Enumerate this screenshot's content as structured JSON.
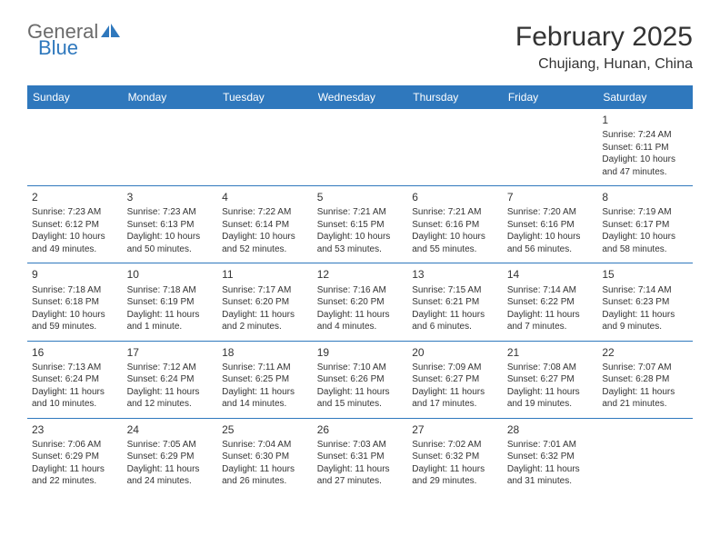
{
  "logo": {
    "word1": "General",
    "word2": "Blue"
  },
  "title": "February 2025",
  "location": "Chujiang, Hunan, China",
  "colors": {
    "header_bg": "#2f78bd",
    "header_text": "#ffffff",
    "body_bg": "#ffffff",
    "text": "#333333",
    "rule": "#2f78bd"
  },
  "weekdays": [
    "Sunday",
    "Monday",
    "Tuesday",
    "Wednesday",
    "Thursday",
    "Friday",
    "Saturday"
  ],
  "weeks": [
    [
      null,
      null,
      null,
      null,
      null,
      null,
      {
        "n": "1",
        "sr": "Sunrise: 7:24 AM",
        "ss": "Sunset: 6:11 PM",
        "dl1": "Daylight: 10 hours",
        "dl2": "and 47 minutes."
      }
    ],
    [
      {
        "n": "2",
        "sr": "Sunrise: 7:23 AM",
        "ss": "Sunset: 6:12 PM",
        "dl1": "Daylight: 10 hours",
        "dl2": "and 49 minutes."
      },
      {
        "n": "3",
        "sr": "Sunrise: 7:23 AM",
        "ss": "Sunset: 6:13 PM",
        "dl1": "Daylight: 10 hours",
        "dl2": "and 50 minutes."
      },
      {
        "n": "4",
        "sr": "Sunrise: 7:22 AM",
        "ss": "Sunset: 6:14 PM",
        "dl1": "Daylight: 10 hours",
        "dl2": "and 52 minutes."
      },
      {
        "n": "5",
        "sr": "Sunrise: 7:21 AM",
        "ss": "Sunset: 6:15 PM",
        "dl1": "Daylight: 10 hours",
        "dl2": "and 53 minutes."
      },
      {
        "n": "6",
        "sr": "Sunrise: 7:21 AM",
        "ss": "Sunset: 6:16 PM",
        "dl1": "Daylight: 10 hours",
        "dl2": "and 55 minutes."
      },
      {
        "n": "7",
        "sr": "Sunrise: 7:20 AM",
        "ss": "Sunset: 6:16 PM",
        "dl1": "Daylight: 10 hours",
        "dl2": "and 56 minutes."
      },
      {
        "n": "8",
        "sr": "Sunrise: 7:19 AM",
        "ss": "Sunset: 6:17 PM",
        "dl1": "Daylight: 10 hours",
        "dl2": "and 58 minutes."
      }
    ],
    [
      {
        "n": "9",
        "sr": "Sunrise: 7:18 AM",
        "ss": "Sunset: 6:18 PM",
        "dl1": "Daylight: 10 hours",
        "dl2": "and 59 minutes."
      },
      {
        "n": "10",
        "sr": "Sunrise: 7:18 AM",
        "ss": "Sunset: 6:19 PM",
        "dl1": "Daylight: 11 hours",
        "dl2": "and 1 minute."
      },
      {
        "n": "11",
        "sr": "Sunrise: 7:17 AM",
        "ss": "Sunset: 6:20 PM",
        "dl1": "Daylight: 11 hours",
        "dl2": "and 2 minutes."
      },
      {
        "n": "12",
        "sr": "Sunrise: 7:16 AM",
        "ss": "Sunset: 6:20 PM",
        "dl1": "Daylight: 11 hours",
        "dl2": "and 4 minutes."
      },
      {
        "n": "13",
        "sr": "Sunrise: 7:15 AM",
        "ss": "Sunset: 6:21 PM",
        "dl1": "Daylight: 11 hours",
        "dl2": "and 6 minutes."
      },
      {
        "n": "14",
        "sr": "Sunrise: 7:14 AM",
        "ss": "Sunset: 6:22 PM",
        "dl1": "Daylight: 11 hours",
        "dl2": "and 7 minutes."
      },
      {
        "n": "15",
        "sr": "Sunrise: 7:14 AM",
        "ss": "Sunset: 6:23 PM",
        "dl1": "Daylight: 11 hours",
        "dl2": "and 9 minutes."
      }
    ],
    [
      {
        "n": "16",
        "sr": "Sunrise: 7:13 AM",
        "ss": "Sunset: 6:24 PM",
        "dl1": "Daylight: 11 hours",
        "dl2": "and 10 minutes."
      },
      {
        "n": "17",
        "sr": "Sunrise: 7:12 AM",
        "ss": "Sunset: 6:24 PM",
        "dl1": "Daylight: 11 hours",
        "dl2": "and 12 minutes."
      },
      {
        "n": "18",
        "sr": "Sunrise: 7:11 AM",
        "ss": "Sunset: 6:25 PM",
        "dl1": "Daylight: 11 hours",
        "dl2": "and 14 minutes."
      },
      {
        "n": "19",
        "sr": "Sunrise: 7:10 AM",
        "ss": "Sunset: 6:26 PM",
        "dl1": "Daylight: 11 hours",
        "dl2": "and 15 minutes."
      },
      {
        "n": "20",
        "sr": "Sunrise: 7:09 AM",
        "ss": "Sunset: 6:27 PM",
        "dl1": "Daylight: 11 hours",
        "dl2": "and 17 minutes."
      },
      {
        "n": "21",
        "sr": "Sunrise: 7:08 AM",
        "ss": "Sunset: 6:27 PM",
        "dl1": "Daylight: 11 hours",
        "dl2": "and 19 minutes."
      },
      {
        "n": "22",
        "sr": "Sunrise: 7:07 AM",
        "ss": "Sunset: 6:28 PM",
        "dl1": "Daylight: 11 hours",
        "dl2": "and 21 minutes."
      }
    ],
    [
      {
        "n": "23",
        "sr": "Sunrise: 7:06 AM",
        "ss": "Sunset: 6:29 PM",
        "dl1": "Daylight: 11 hours",
        "dl2": "and 22 minutes."
      },
      {
        "n": "24",
        "sr": "Sunrise: 7:05 AM",
        "ss": "Sunset: 6:29 PM",
        "dl1": "Daylight: 11 hours",
        "dl2": "and 24 minutes."
      },
      {
        "n": "25",
        "sr": "Sunrise: 7:04 AM",
        "ss": "Sunset: 6:30 PM",
        "dl1": "Daylight: 11 hours",
        "dl2": "and 26 minutes."
      },
      {
        "n": "26",
        "sr": "Sunrise: 7:03 AM",
        "ss": "Sunset: 6:31 PM",
        "dl1": "Daylight: 11 hours",
        "dl2": "and 27 minutes."
      },
      {
        "n": "27",
        "sr": "Sunrise: 7:02 AM",
        "ss": "Sunset: 6:32 PM",
        "dl1": "Daylight: 11 hours",
        "dl2": "and 29 minutes."
      },
      {
        "n": "28",
        "sr": "Sunrise: 7:01 AM",
        "ss": "Sunset: 6:32 PM",
        "dl1": "Daylight: 11 hours",
        "dl2": "and 31 minutes."
      },
      null
    ]
  ]
}
